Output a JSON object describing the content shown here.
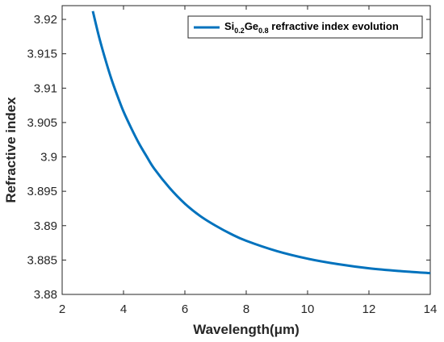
{
  "chart_data": {
    "type": "line",
    "xlabel": "Wavelength(μm)",
    "ylabel": "Refractive index",
    "xlim": [
      2,
      14
    ],
    "ylim": [
      3.88,
      3.922
    ],
    "xticks": [
      2,
      4,
      6,
      8,
      10,
      12,
      14
    ],
    "xtick_labels": [
      "2",
      "4",
      "6",
      "8",
      "10",
      "12",
      "14"
    ],
    "yticks": [
      3.88,
      3.885,
      3.89,
      3.895,
      3.9,
      3.905,
      3.91,
      3.915,
      3.92
    ],
    "ytick_labels": [
      "3.88",
      "3.885",
      "3.89",
      "3.895",
      "3.9",
      "3.905",
      "3.91",
      "3.915",
      "3.92"
    ],
    "grid": false,
    "legend_position": "top-right",
    "series": [
      {
        "name": "Si0.2Ge0.8 refractive index evolution",
        "legend": {
          "base1": "Si",
          "sub1": "0.2",
          "base2": "Ge",
          "sub2": "0.8",
          "tail": " refractive index evolution"
        },
        "color": "#0072BD",
        "x": [
          3.0,
          3.2,
          3.4,
          3.6,
          3.8,
          4.0,
          4.25,
          4.5,
          4.75,
          5.0,
          5.5,
          6.0,
          6.5,
          7.0,
          7.5,
          8.0,
          9.0,
          10.0,
          11.0,
          12.0,
          13.0,
          14.0
        ],
        "y": [
          3.9212,
          3.9175,
          3.9143,
          3.9114,
          3.9089,
          3.9066,
          3.9042,
          3.902,
          3.9001,
          3.8983,
          3.8955,
          3.8932,
          3.8914,
          3.89,
          3.8888,
          3.8878,
          3.8863,
          3.8852,
          3.8844,
          3.8838,
          3.8834,
          3.8831
        ]
      }
    ]
  }
}
